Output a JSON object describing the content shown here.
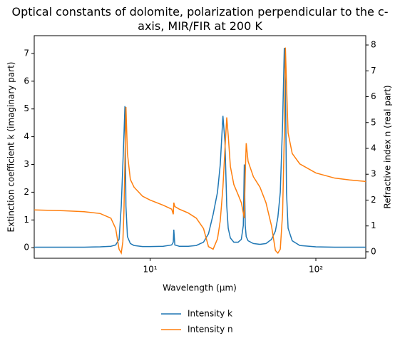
{
  "chart_data": {
    "type": "line",
    "title": "Optical constants of dolomite, polarization perpendicular to the c-axis, MIR/FIR at 200 K",
    "xlabel": "Wavelength (μm)",
    "ylabel": "Extinction coefficient k (imaginary part)",
    "y2label": "Refractive index n (real part)",
    "xscale": "log",
    "xlim": [
      2,
      200
    ],
    "xticks": [
      {
        "value": 10,
        "label": "10¹"
      },
      {
        "value": 100,
        "label": "10²"
      }
    ],
    "ylim": [
      -0.38,
      7.64
    ],
    "yticks": [
      0,
      1,
      2,
      3,
      4,
      5,
      6,
      7
    ],
    "y2lim": [
      -0.25,
      8.36
    ],
    "y2ticks": [
      0,
      1,
      2,
      3,
      4,
      5,
      6,
      7,
      8
    ],
    "legend": "below",
    "x": [
      2,
      3,
      4,
      5,
      5.8,
      6.2,
      6.5,
      6.7,
      6.85,
      6.95,
      7.05,
      7.15,
      7.3,
      7.6,
      8,
      9,
      10,
      12,
      13.5,
      13.8,
      13.9,
      14.1,
      15,
      17,
      19,
      21,
      22.5,
      24,
      25.5,
      26.5,
      27.5,
      28.3,
      29,
      29.6,
      30.5,
      32,
      34,
      35.5,
      36.5,
      37,
      37.5,
      38,
      39,
      42,
      46,
      50,
      54,
      57,
      59,
      61,
      63,
      64.5,
      65.5,
      66.5,
      68,
      72,
      80,
      100,
      130,
      160,
      200
    ],
    "series": [
      {
        "name": "Intensity k",
        "color": "#1f77b4",
        "axis": "y",
        "values": [
          0.02,
          0.02,
          0.02,
          0.03,
          0.05,
          0.1,
          0.3,
          1.5,
          3.0,
          4.0,
          5.1,
          1.5,
          0.4,
          0.15,
          0.08,
          0.04,
          0.04,
          0.05,
          0.1,
          0.2,
          0.65,
          0.1,
          0.05,
          0.05,
          0.08,
          0.2,
          0.5,
          1.2,
          2.0,
          3.0,
          4.75,
          3.8,
          1.5,
          0.7,
          0.35,
          0.2,
          0.2,
          0.3,
          0.8,
          3.0,
          0.8,
          0.4,
          0.25,
          0.15,
          0.12,
          0.15,
          0.3,
          0.6,
          1.1,
          2.0,
          4.5,
          7.2,
          6.0,
          2.0,
          0.7,
          0.25,
          0.08,
          0.03,
          0.02,
          0.02,
          0.02
        ]
      },
      {
        "name": "Intensity n",
        "color": "#ff7f0e",
        "axis": "y2",
        "values": [
          1.62,
          1.59,
          1.55,
          1.48,
          1.3,
          0.9,
          0.1,
          -0.05,
          0.4,
          1.5,
          3.5,
          5.6,
          3.8,
          2.8,
          2.5,
          2.15,
          2.0,
          1.8,
          1.65,
          1.45,
          1.9,
          1.75,
          1.65,
          1.5,
          1.3,
          0.9,
          0.2,
          0.1,
          0.5,
          1.2,
          2.5,
          4.0,
          5.2,
          4.5,
          3.3,
          2.6,
          2.2,
          1.9,
          1.5,
          1.3,
          3.0,
          4.2,
          3.5,
          2.9,
          2.5,
          1.9,
          1.0,
          0.05,
          -0.05,
          0.1,
          1.5,
          4.5,
          7.9,
          6.5,
          4.6,
          3.8,
          3.4,
          3.05,
          2.85,
          2.78,
          2.72
        ]
      }
    ]
  }
}
